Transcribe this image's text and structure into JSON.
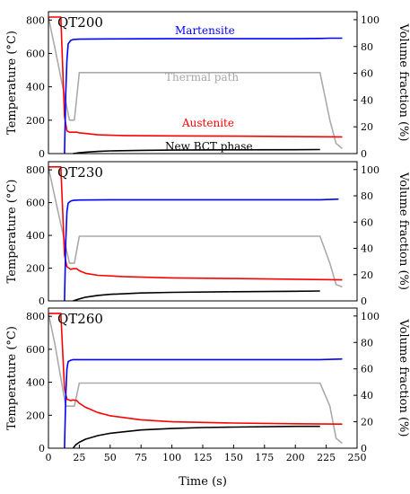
{
  "chart_data": [
    {
      "type": "line",
      "title": "QT200",
      "xlabel": "",
      "ylabel_left": "Temperature (°C)",
      "ylabel_right": "Volume fraction (%)",
      "xlim": [
        0,
        250
      ],
      "ylim_left": [
        0,
        850
      ],
      "ylim_right": [
        0,
        106
      ],
      "yticks_left": [
        0,
        200,
        400,
        600,
        800
      ],
      "yticks_right": [
        0,
        20,
        40,
        60,
        80,
        100
      ],
      "series": [
        {
          "name": "Thermal path",
          "axis": "left",
          "color": "#aaaaaa",
          "x": [
            0,
            5,
            17,
            21,
            25,
            220,
            228,
            233,
            238
          ],
          "y": [
            815,
            640,
            200,
            200,
            485,
            485,
            200,
            60,
            30
          ]
        },
        {
          "name": "Austenite",
          "axis": "right",
          "color": "#ff0000",
          "x": [
            0,
            10,
            13,
            15,
            17,
            20,
            23,
            25,
            30,
            40,
            60,
            100,
            150,
            200,
            238
          ],
          "y": [
            102,
            102,
            28,
            17,
            16,
            16,
            16,
            15.5,
            15,
            14,
            13.5,
            13.2,
            13,
            12.7,
            12.5
          ]
        },
        {
          "name": "Martensite",
          "axis": "right",
          "color": "#0000ff",
          "x": [
            13,
            14,
            15,
            16,
            18,
            20,
            25,
            50,
            100,
            150,
            200,
            220,
            228,
            238
          ],
          "y": [
            0,
            45,
            70,
            82,
            84.5,
            85.2,
            85.5,
            85.7,
            85.8,
            85.8,
            85.8,
            86,
            86.2,
            86.2
          ]
        },
        {
          "name": "New BCT phase",
          "axis": "right",
          "color": "#000000",
          "x": [
            20,
            25,
            30,
            40,
            50,
            75,
            100,
            150,
            200,
            220
          ],
          "y": [
            0,
            0.7,
            1.1,
            1.6,
            2.0,
            2.4,
            2.6,
            2.8,
            2.9,
            3.0
          ]
        }
      ],
      "annotations": [
        "Martensite",
        "Thermal path",
        "Austenite",
        "New BCT phase"
      ],
      "legend": "none",
      "grid": false
    },
    {
      "type": "line",
      "title": "QT230",
      "xlabel": "",
      "ylabel_left": "Temperature (°C)",
      "ylabel_right": "Volume fraction (%)",
      "xlim": [
        0,
        250
      ],
      "ylim_left": [
        0,
        850
      ],
      "ylim_right": [
        0,
        106
      ],
      "yticks_left": [
        0,
        200,
        400,
        600,
        800
      ],
      "yticks_right": [
        0,
        20,
        40,
        60,
        80,
        100
      ],
      "series": [
        {
          "name": "Thermal path",
          "axis": "left",
          "color": "#aaaaaa",
          "x": [
            0,
            5,
            17,
            21,
            25,
            220,
            228,
            233,
            238
          ],
          "y": [
            815,
            640,
            230,
            230,
            395,
            395,
            230,
            100,
            85
          ]
        },
        {
          "name": "Austenite",
          "axis": "right",
          "color": "#ff0000",
          "x": [
            0,
            10,
            13,
            15,
            18,
            20,
            23,
            25,
            30,
            40,
            60,
            100,
            150,
            200,
            238
          ],
          "y": [
            102,
            102,
            35,
            26,
            24,
            24.5,
            24.5,
            23,
            21,
            19.5,
            18.5,
            17.5,
            17,
            16.5,
            16
          ]
        },
        {
          "name": "Martensite",
          "axis": "right",
          "color": "#0000ff",
          "x": [
            13,
            14,
            15,
            16,
            18,
            20,
            25,
            50,
            100,
            150,
            200,
            220,
            235
          ],
          "y": [
            0,
            45,
            68,
            74.5,
            76,
            76.5,
            76.8,
            77,
            77,
            77,
            77,
            77,
            77.5
          ]
        },
        {
          "name": "New BCT phase",
          "axis": "right",
          "color": "#000000",
          "x": [
            20,
            25,
            30,
            40,
            50,
            75,
            100,
            150,
            200,
            220
          ],
          "y": [
            0,
            1.5,
            2.8,
            4.2,
            5.0,
            6.0,
            6.5,
            7.0,
            7.3,
            7.5
          ]
        }
      ],
      "legend": "none",
      "grid": false
    },
    {
      "type": "line",
      "title": "QT260",
      "xlabel": "Time (s)",
      "ylabel_left": "Temperature (°C)",
      "ylabel_right": "Volume fraction (%)",
      "xlim": [
        0,
        250
      ],
      "ylim_left": [
        0,
        850
      ],
      "ylim_right": [
        0,
        106
      ],
      "yticks_left": [
        0,
        200,
        400,
        600,
        800
      ],
      "yticks_right": [
        0,
        20,
        40,
        60,
        80,
        100
      ],
      "xticks": [
        0,
        25,
        50,
        75,
        100,
        125,
        150,
        175,
        200,
        225,
        250
      ],
      "series": [
        {
          "name": "Thermal path",
          "axis": "left",
          "color": "#aaaaaa",
          "x": [
            0,
            5,
            14,
            21,
            25,
            220,
            228,
            233,
            238
          ],
          "y": [
            815,
            640,
            255,
            255,
            395,
            395,
            255,
            60,
            30
          ]
        },
        {
          "name": "Austenite",
          "axis": "right",
          "color": "#ff0000",
          "x": [
            0,
            10,
            13,
            15,
            18,
            20,
            23,
            25,
            30,
            40,
            50,
            75,
            100,
            150,
            200,
            238
          ],
          "y": [
            102,
            102,
            45,
            37,
            36,
            36.5,
            36,
            34,
            31,
            27,
            24.5,
            21.5,
            20,
            19,
            18.5,
            18.2
          ]
        },
        {
          "name": "Martensite",
          "axis": "right",
          "color": "#0000ff",
          "x": [
            13,
            14,
            15,
            16,
            18,
            20,
            25,
            50,
            100,
            150,
            200,
            220,
            238
          ],
          "y": [
            0,
            40,
            60,
            65.5,
            66.5,
            67,
            67,
            67,
            67,
            67,
            67,
            67,
            67.5
          ]
        },
        {
          "name": "New BCT phase",
          "axis": "right",
          "color": "#000000",
          "x": [
            20,
            22,
            25,
            30,
            40,
            50,
            75,
            100,
            125,
            150,
            200,
            220
          ],
          "y": [
            0,
            2.5,
            4.5,
            6.8,
            9.5,
            11.3,
            13.8,
            14.9,
            15.6,
            16.0,
            16.5,
            16.5
          ]
        }
      ],
      "legend": "none",
      "grid": false
    }
  ]
}
